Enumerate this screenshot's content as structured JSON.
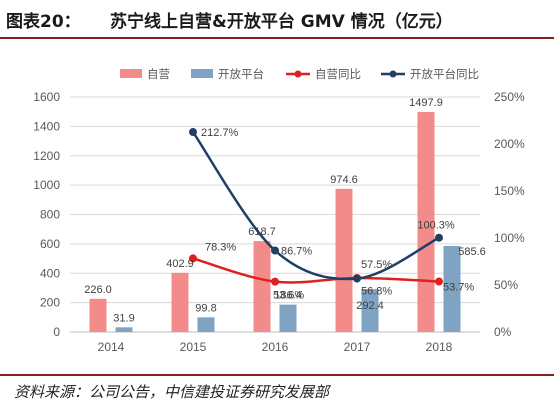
{
  "header": {
    "figure_label": "图表20：",
    "title": "苏宁线上自营&开放平台 GMV 情况（亿元）"
  },
  "footer": {
    "source": "资料来源：公司公告，中信建投证券研究发展部"
  },
  "chart_data": {
    "type": "bar",
    "categories": [
      "2014",
      "2015",
      "2016",
      "2017",
      "2018"
    ],
    "series": [
      {
        "name": "自营",
        "kind": "bar",
        "axis": "left",
        "color": "#f48b8b",
        "values": [
          226.0,
          402.9,
          618.7,
          974.6,
          1497.9
        ],
        "labels": [
          "226.0",
          "402.9",
          "618.7",
          "974.6",
          "1497.9"
        ]
      },
      {
        "name": "开放平台",
        "kind": "bar",
        "axis": "left",
        "color": "#7fa3c2",
        "values": [
          31.9,
          99.8,
          186.4,
          292.4,
          585.6
        ],
        "labels": [
          "31.9",
          "99.8",
          "186.4",
          "292.4",
          "585.6"
        ]
      },
      {
        "name": "自营同比",
        "kind": "line",
        "axis": "right",
        "color": "#e0201f",
        "values": [
          null,
          78.3,
          53.6,
          57.5,
          53.7
        ],
        "labels": [
          "",
          "78.3%",
          "53.6%",
          "57.5%",
          "53.7%"
        ]
      },
      {
        "name": "开放平台同比",
        "kind": "line",
        "axis": "right",
        "color": "#1f3f66",
        "values": [
          null,
          212.7,
          86.7,
          56.8,
          100.3
        ],
        "labels": [
          "",
          "212.7%",
          "86.7%",
          "56.8%",
          "100.3%"
        ]
      }
    ],
    "y_left": {
      "min": 0,
      "max": 1600,
      "step": 200,
      "ticks": [
        "0",
        "200",
        "400",
        "600",
        "800",
        "1000",
        "1200",
        "1400",
        "1600"
      ]
    },
    "y_right": {
      "min": 0,
      "max": 250,
      "step": 50,
      "ticks": [
        "0%",
        "50%",
        "100%",
        "150%",
        "200%",
        "250%"
      ]
    },
    "grid": true,
    "legend": "top-center"
  }
}
